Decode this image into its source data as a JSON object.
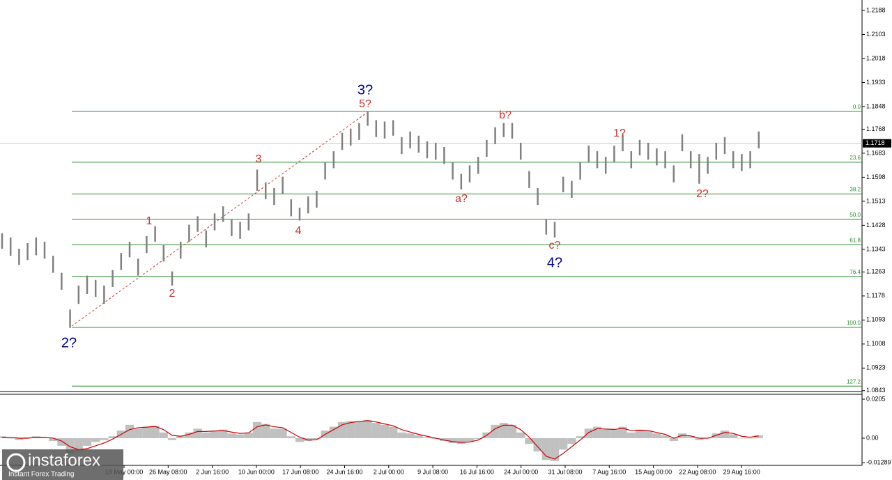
{
  "chart_data": {
    "type": "ohlc",
    "color": "#808080",
    "ylim": [
      1.084,
      1.2225
    ],
    "yticks": [
      1.2188,
      1.2103,
      1.2018,
      1.1933,
      1.1848,
      1.1768,
      1.1683,
      1.1598,
      1.1513,
      1.1428,
      1.1343,
      1.1263,
      1.1178,
      1.1093,
      1.1008,
      1.0923,
      1.0843
    ],
    "low": [
      1.1345,
      1.132,
      1.1288,
      1.1305,
      1.1322,
      1.131,
      1.126,
      1.12,
      1.1065,
      1.115,
      1.1185,
      1.1175,
      1.115,
      1.121,
      1.127,
      1.1315,
      1.125,
      1.133,
      1.137,
      1.13,
      1.1215,
      1.131,
      1.137,
      1.1405,
      1.135,
      1.141,
      1.144,
      1.139,
      1.138,
      1.141,
      1.155,
      1.152,
      1.15,
      1.154,
      1.146,
      1.1445,
      1.147,
      1.149,
      1.159,
      1.163,
      1.1695,
      1.171,
      1.173,
      1.178,
      1.174,
      1.1735,
      1.1745,
      1.168,
      1.17,
      1.1685,
      1.1665,
      1.166,
      1.1645,
      1.159,
      1.1555,
      1.158,
      1.161,
      1.167,
      1.1715,
      1.174,
      1.1735,
      1.166,
      1.156,
      1.15,
      1.1395,
      1.1385,
      1.1545,
      1.1525,
      1.159,
      1.165,
      1.163,
      1.161,
      1.165,
      1.169,
      1.163,
      1.1675,
      1.166,
      1.164,
      1.163,
      1.158,
      1.169,
      1.163,
      1.1575,
      1.161,
      1.166,
      1.168,
      1.163,
      1.162,
      1.163,
      1.17
    ],
    "high": [
      1.14,
      1.1385,
      1.1345,
      1.1365,
      1.1385,
      1.137,
      1.132,
      1.126,
      1.113,
      1.1215,
      1.125,
      1.1235,
      1.1215,
      1.127,
      1.133,
      1.137,
      1.131,
      1.139,
      1.1425,
      1.136,
      1.1265,
      1.137,
      1.143,
      1.146,
      1.141,
      1.147,
      1.1495,
      1.145,
      1.144,
      1.147,
      1.1625,
      1.158,
      1.156,
      1.16,
      1.152,
      1.149,
      1.153,
      1.155,
      1.165,
      1.169,
      1.1755,
      1.177,
      1.179,
      1.183,
      1.18,
      1.1795,
      1.18,
      1.174,
      1.176,
      1.1745,
      1.1725,
      1.172,
      1.1705,
      1.165,
      1.161,
      1.164,
      1.167,
      1.173,
      1.1775,
      1.179,
      1.179,
      1.172,
      1.162,
      1.156,
      1.145,
      1.144,
      1.16,
      1.1585,
      1.165,
      1.171,
      1.169,
      1.167,
      1.171,
      1.175,
      1.169,
      1.173,
      1.172,
      1.17,
      1.169,
      1.164,
      1.175,
      1.169,
      1.168,
      1.167,
      1.172,
      1.174,
      1.169,
      1.168,
      1.169,
      1.176
    ],
    "current_price": 1.1718,
    "fib_color": "#2e8b2e",
    "fib_levels": [
      {
        "value": 1.1831,
        "label": "0.0"
      },
      {
        "value": 1.1651,
        "label": "23.6"
      },
      {
        "value": 1.1539,
        "label": "38.2"
      },
      {
        "value": 1.1449,
        "label": "50.0"
      },
      {
        "value": 1.1359,
        "label": "61.8"
      },
      {
        "value": 1.1247,
        "label": "76.4"
      },
      {
        "value": 1.1067,
        "label": "100.0"
      },
      {
        "value": 1.0859,
        "label": "127.2"
      }
    ],
    "annotations": [
      {
        "text": "2?",
        "color": "#00008b"
      },
      {
        "text": "3?",
        "color": "#00008b"
      },
      {
        "text": "4?",
        "color": "#00008b"
      },
      {
        "text": "5?",
        "color": "#d03030"
      },
      {
        "text": "1",
        "color": "#d03030"
      },
      {
        "text": "2",
        "color": "#d03030"
      },
      {
        "text": "3",
        "color": "#d03030"
      },
      {
        "text": "4",
        "color": "#d03030"
      },
      {
        "text": "a?",
        "color": "#d03030"
      },
      {
        "text": "b?",
        "color": "#d03030"
      },
      {
        "text": "c?",
        "color": "#d03030"
      },
      {
        "text": "1?",
        "color": "#d03030"
      },
      {
        "text": "2?",
        "color": "#d03030"
      }
    ],
    "x_labels": [
      "19 May 00:00",
      "26 May 08:00",
      "2 Jun 16:00",
      "10 Jun 00:00",
      "17 Jun 08:00",
      "24 Jun 16:00",
      "2 Jul 00:00",
      "9 Jul 08:00",
      "16 Jul 16:00",
      "24 Jul 00:00",
      "31 Jul 08:00",
      "7 Aug 16:00",
      "15 Aug 00:00",
      "22 Aug 08:00",
      "29 Aug 16:00"
    ],
    "oscillator": {
      "ylim": [
        -0.0143,
        0.0227
      ],
      "yticks": [
        0.0205,
        {
          "value": 0,
          "label": "0.00"
        },
        -0.01289
      ],
      "histogram_color": "#c0c0c0",
      "signal_color": "#cc0000",
      "histogram": [
        0.001,
        0.0,
        -0.001,
        0.0005,
        0.001,
        0.0005,
        -0.0015,
        -0.004,
        -0.008,
        -0.007,
        -0.004,
        -0.002,
        -0.001,
        0.001,
        0.004,
        0.007,
        0.005,
        0.006,
        0.0065,
        0.003,
        -0.001,
        0.001,
        0.003,
        0.005,
        0.003,
        0.004,
        0.0045,
        0.0025,
        0.002,
        0.003,
        0.0085,
        0.0075,
        0.005,
        0.005,
        0.001,
        -0.002,
        -0.0015,
        -0.0005,
        0.004,
        0.006,
        0.0085,
        0.009,
        0.009,
        0.0095,
        0.008,
        0.007,
        0.006,
        0.003,
        0.0025,
        0.0015,
        0.0005,
        -0.0005,
        -0.0015,
        -0.0025,
        -0.003,
        -0.002,
        -0.0005,
        0.003,
        0.007,
        0.008,
        0.007,
        0.003,
        -0.003,
        -0.007,
        -0.0115,
        -0.012,
        -0.006,
        -0.003,
        0.001,
        0.005,
        0.006,
        0.0045,
        0.0045,
        0.006,
        0.003,
        0.0045,
        0.004,
        0.0025,
        0.0015,
        -0.0015,
        0.0025,
        0.001,
        -0.001,
        0.0,
        0.0025,
        0.004,
        0.002,
        0.0,
        0.0,
        0.0015
      ],
      "signal": [
        0.0005,
        0.0005,
        0.0,
        0.0,
        0.0005,
        0.0005,
        0.0,
        -0.0015,
        -0.0045,
        -0.006,
        -0.0055,
        -0.004,
        -0.0025,
        -0.0005,
        0.002,
        0.0045,
        0.0055,
        0.0058,
        0.0062,
        0.0045,
        0.0015,
        0.001,
        0.002,
        0.0035,
        0.0035,
        0.0038,
        0.004,
        0.0032,
        0.0025,
        0.0028,
        0.006,
        0.007,
        0.006,
        0.0055,
        0.003,
        0.0005,
        -0.001,
        -0.0008,
        0.002,
        0.0045,
        0.007,
        0.0082,
        0.0088,
        0.0092,
        0.0085,
        0.0075,
        0.0065,
        0.0045,
        0.0032,
        0.002,
        0.001,
        0.0,
        -0.001,
        -0.0018,
        -0.0022,
        -0.002,
        -0.001,
        0.0015,
        0.005,
        0.0068,
        0.0068,
        0.0045,
        0.0005,
        -0.0045,
        -0.0095,
        -0.011,
        -0.008,
        -0.0045,
        -0.001,
        0.003,
        0.005,
        0.0048,
        0.0046,
        0.0052,
        0.004,
        0.0042,
        0.004,
        0.003,
        0.002,
        0.0,
        0.0015,
        0.0012,
        0.0,
        0.0,
        0.0015,
        0.003,
        0.0025,
        0.001,
        0.0005,
        0.0012
      ]
    },
    "watermark": {
      "brand": "instaforex",
      "tagline": "Instant Forex Trading"
    }
  }
}
